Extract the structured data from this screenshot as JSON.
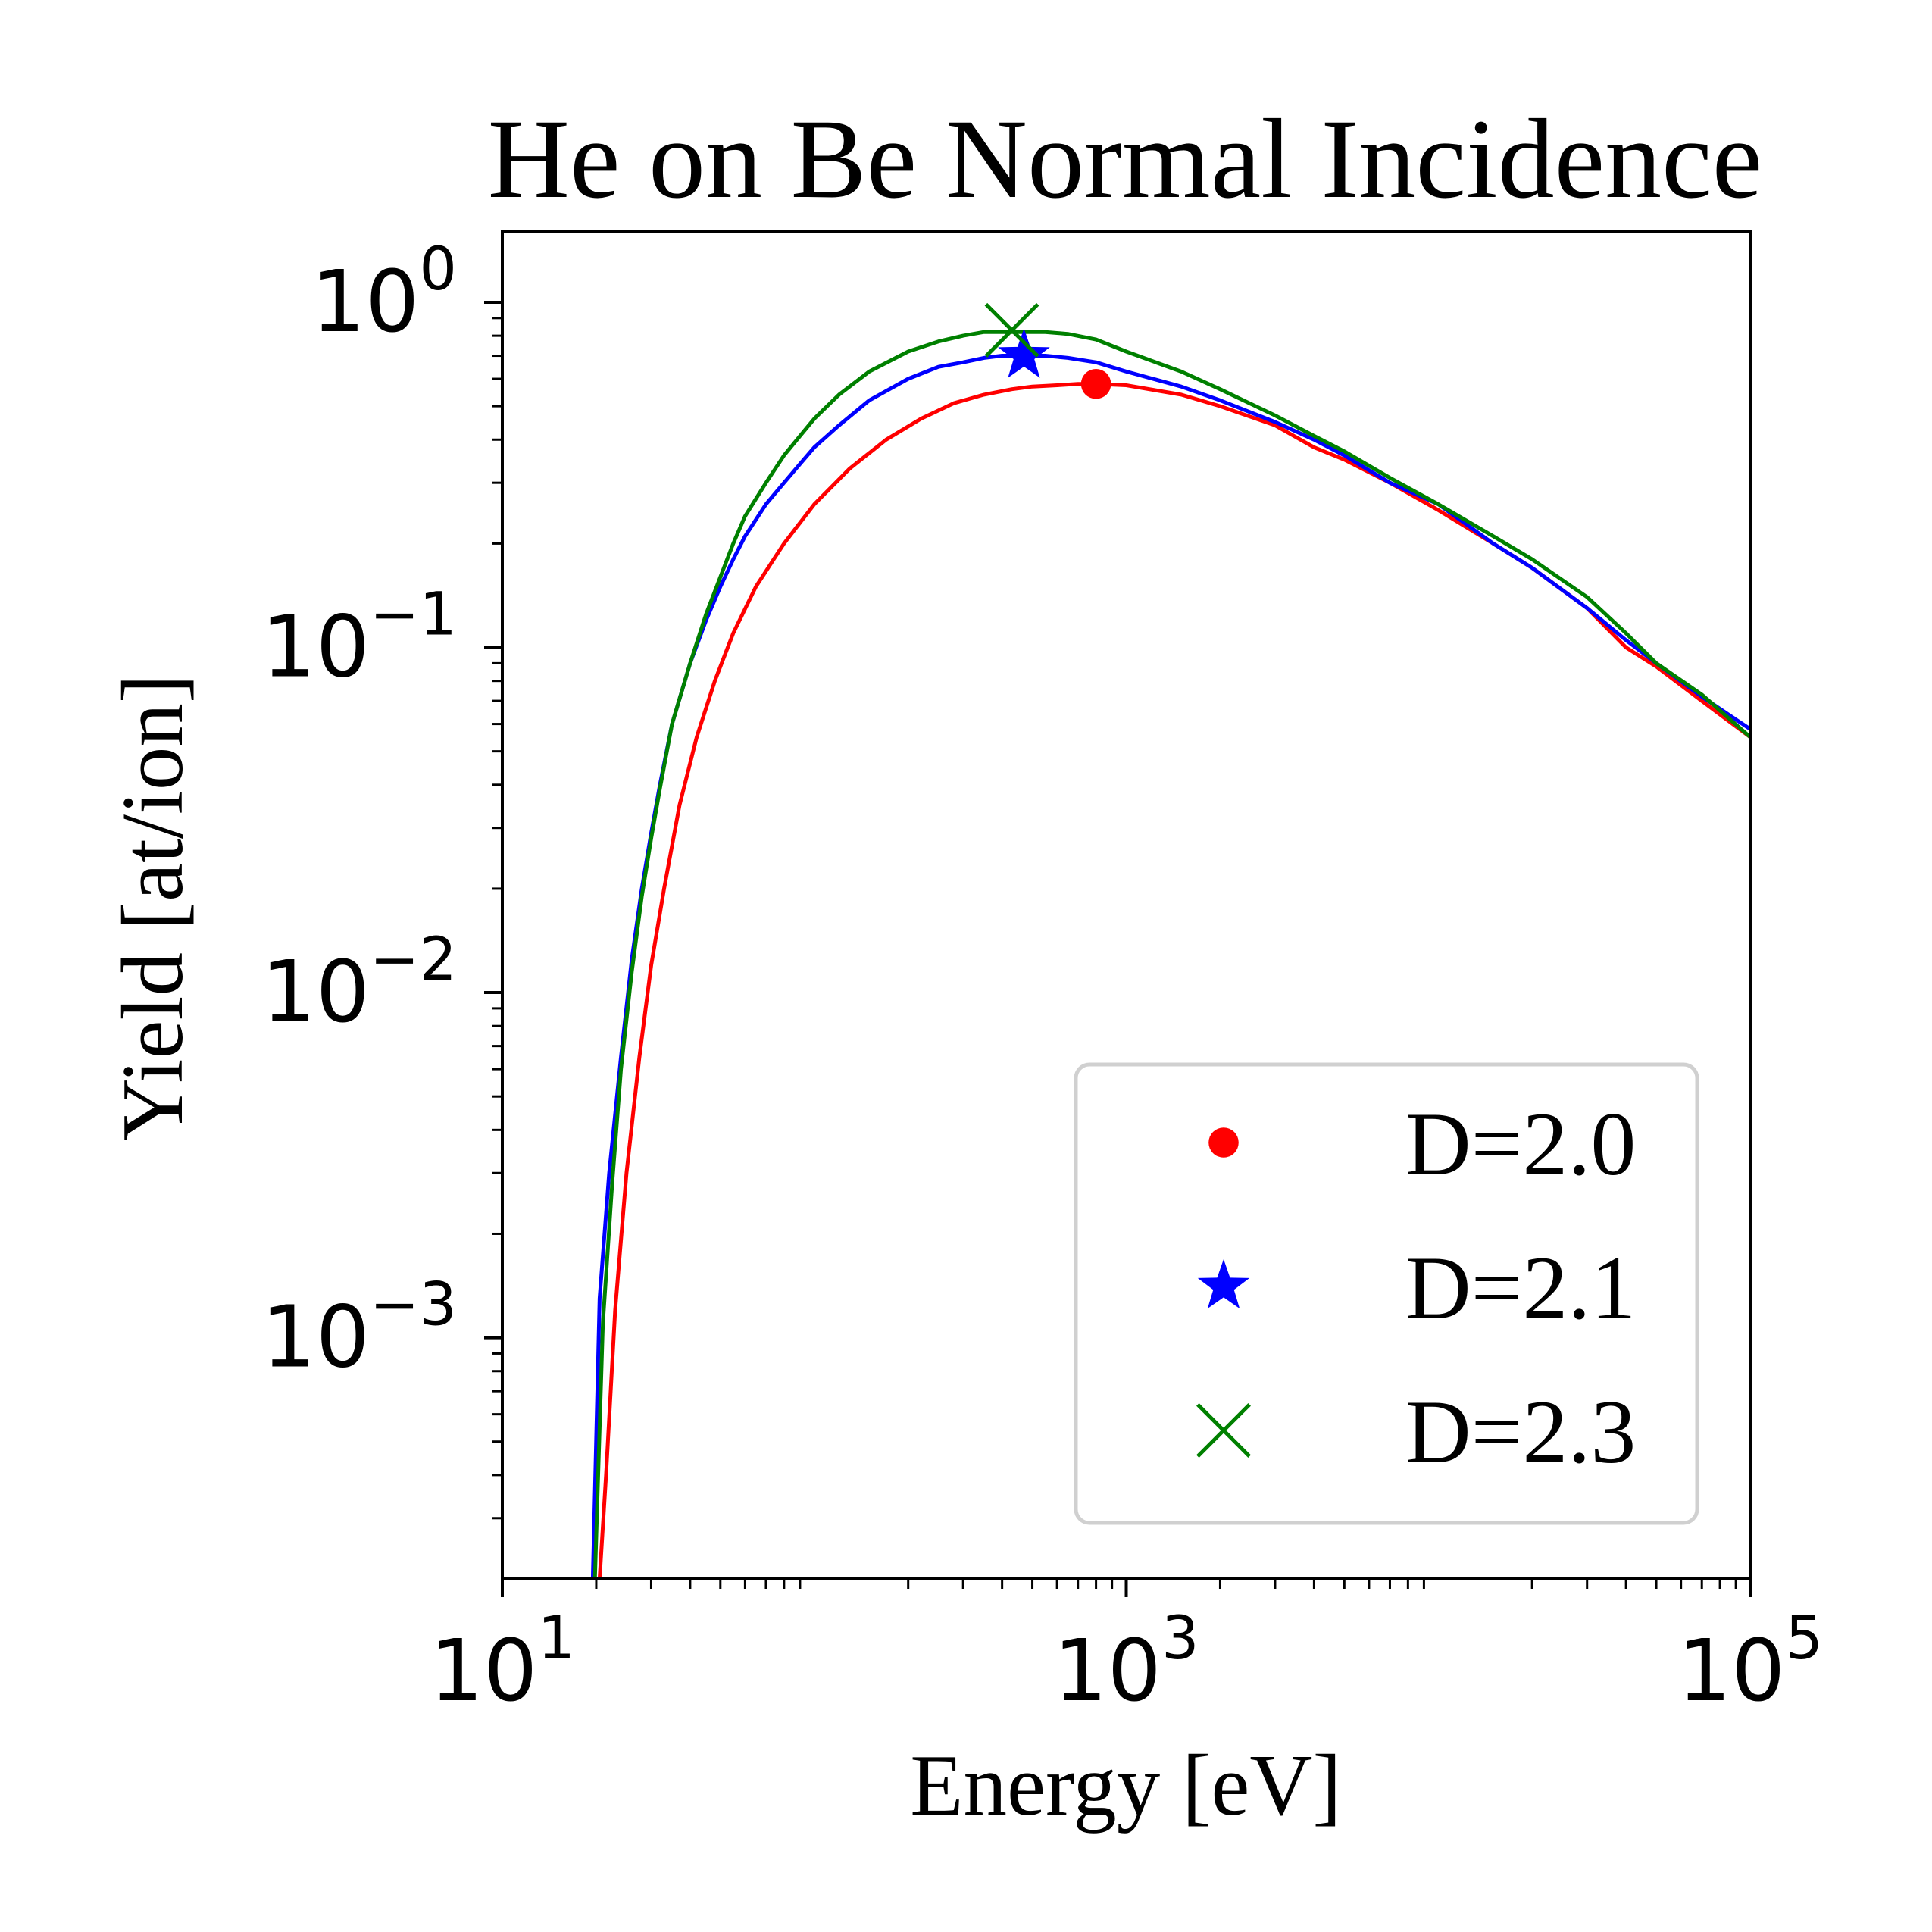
{
  "chart_data": {
    "type": "line",
    "title": "He on Be Normal Incidence",
    "xlabel": "Energy [eV]",
    "ylabel": "Yield [at/ion]",
    "xscale": "log",
    "yscale": "log",
    "xlim": [
      10,
      100000
    ],
    "ylim": [
      0.0002,
      1.6
    ],
    "x_ticks": [
      {
        "value": 10,
        "base": "10",
        "exp": "1"
      },
      {
        "value": 1000,
        "base": "10",
        "exp": "3"
      },
      {
        "value": 100000,
        "base": "10",
        "exp": "5"
      }
    ],
    "y_ticks": [
      {
        "value": 1,
        "base": "10",
        "exp": "0"
      },
      {
        "value": 0.1,
        "base": "10",
        "exp": "−1"
      },
      {
        "value": 0.01,
        "base": "10",
        "exp": "−2"
      },
      {
        "value": 0.001,
        "base": "10",
        "exp": "−3"
      }
    ],
    "grid": false,
    "legend_position": "lower-right",
    "series": [
      {
        "name": "D=2.0",
        "color": "#ff0000",
        "marker": "circle",
        "peak": {
          "x": 800,
          "y": 0.58
        },
        "x": [
          20.5,
          21.5,
          23,
          25,
          27.5,
          30,
          33,
          37,
          42,
          48,
          55,
          65,
          80,
          100,
          130,
          170,
          220,
          280,
          350,
          430,
          500,
          600,
          700,
          800,
          1000,
          1500,
          2000,
          3000,
          4000,
          5000,
          7000,
          10000,
          15000,
          20000,
          30000,
          40000,
          50000,
          70000,
          100000
        ],
        "y": [
          0.0002,
          0.0004,
          0.0012,
          0.003,
          0.0065,
          0.012,
          0.02,
          0.035,
          0.055,
          0.08,
          0.11,
          0.15,
          0.2,
          0.26,
          0.33,
          0.4,
          0.46,
          0.51,
          0.54,
          0.56,
          0.57,
          0.575,
          0.58,
          0.58,
          0.575,
          0.54,
          0.5,
          0.44,
          0.38,
          0.35,
          0.3,
          0.25,
          0.2,
          0.17,
          0.13,
          0.1,
          0.088,
          0.07,
          0.055
        ]
      },
      {
        "name": "D=2.1",
        "color": "#0000ff",
        "marker": "star",
        "peak": {
          "x": 470,
          "y": 0.7
        },
        "x": [
          19.5,
          20.5,
          22,
          24,
          26,
          28,
          30,
          32,
          35,
          40,
          45,
          50,
          55,
          60,
          70,
          80,
          90,
          100,
          120,
          150,
          200,
          250,
          300,
          350,
          400,
          470,
          550,
          650,
          800,
          1000,
          1500,
          2000,
          3000,
          4000,
          5000,
          7000,
          10000,
          15000,
          20000,
          30000,
          40000,
          50000,
          70000,
          100000
        ],
        "y": [
          0.0002,
          0.0013,
          0.003,
          0.0065,
          0.0125,
          0.02,
          0.029,
          0.04,
          0.06,
          0.09,
          0.12,
          0.15,
          0.18,
          0.21,
          0.26,
          0.3,
          0.34,
          0.38,
          0.44,
          0.52,
          0.6,
          0.65,
          0.67,
          0.69,
          0.7,
          0.7,
          0.7,
          0.69,
          0.67,
          0.63,
          0.57,
          0.52,
          0.45,
          0.4,
          0.36,
          0.3,
          0.26,
          0.2,
          0.17,
          0.13,
          0.105,
          0.09,
          0.072,
          0.058
        ]
      },
      {
        "name": "D=2.3",
        "color": "#008000",
        "marker": "x",
        "peak": {
          "x": 430,
          "y": 0.83
        },
        "x": [
          19.8,
          21,
          22.5,
          24,
          26,
          28,
          30,
          32,
          35,
          40,
          45,
          50,
          55,
          60,
          70,
          80,
          90,
          100,
          120,
          150,
          200,
          250,
          300,
          350,
          400,
          450,
          550,
          650,
          800,
          1000,
          1500,
          2000,
          3000,
          4000,
          5000,
          7000,
          10000,
          15000,
          20000,
          30000,
          40000,
          50000,
          70000,
          100000
        ],
        "y": [
          0.0002,
          0.0011,
          0.0028,
          0.006,
          0.0115,
          0.019,
          0.028,
          0.039,
          0.06,
          0.09,
          0.125,
          0.16,
          0.2,
          0.24,
          0.3,
          0.36,
          0.41,
          0.46,
          0.54,
          0.63,
          0.72,
          0.77,
          0.8,
          0.82,
          0.82,
          0.82,
          0.82,
          0.81,
          0.78,
          0.72,
          0.63,
          0.56,
          0.47,
          0.41,
          0.37,
          0.31,
          0.26,
          0.21,
          0.18,
          0.14,
          0.11,
          0.09,
          0.073,
          0.055
        ]
      }
    ]
  }
}
